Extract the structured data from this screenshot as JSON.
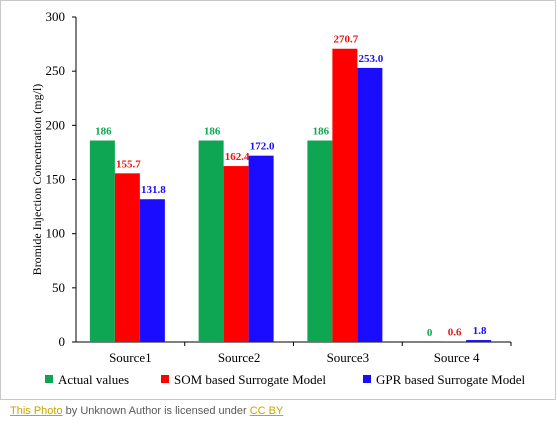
{
  "chart_data": {
    "type": "bar",
    "title": "",
    "xlabel": "",
    "ylabel": "Bromide Injection Concentration (mg/l)",
    "ylim": [
      0,
      300
    ],
    "yticks": [
      0,
      50,
      100,
      150,
      200,
      250,
      300
    ],
    "grid": false,
    "legend_position": "bottom",
    "categories": [
      "Source1",
      "Source2",
      "Source3",
      "Source 4"
    ],
    "series": [
      {
        "name": "Actual values",
        "color": "#0fa653",
        "label_color": "#0fa653",
        "values": [
          186,
          186,
          186,
          0
        ],
        "labels": [
          "186",
          "186",
          "186",
          "0"
        ]
      },
      {
        "name": "SOM based Surrogate Model",
        "color": "#ff0000",
        "label_color": "#ee1111",
        "values": [
          155.7,
          162.4,
          270.7,
          0.6
        ],
        "labels": [
          "155.7",
          "162.4",
          "270.7",
          "0.6"
        ]
      },
      {
        "name": "GPR based Surrogate Model",
        "color": "#1a0dff",
        "label_color": "#1a0dff",
        "values": [
          131.8,
          172.0,
          253.0,
          1.8
        ],
        "labels": [
          "131.8",
          "172.0",
          "253.0",
          "1.8"
        ]
      }
    ]
  },
  "caption": {
    "photo_link": "This Photo",
    "middle_text": " by Unknown Author is licensed under ",
    "license_link": "CC BY"
  }
}
